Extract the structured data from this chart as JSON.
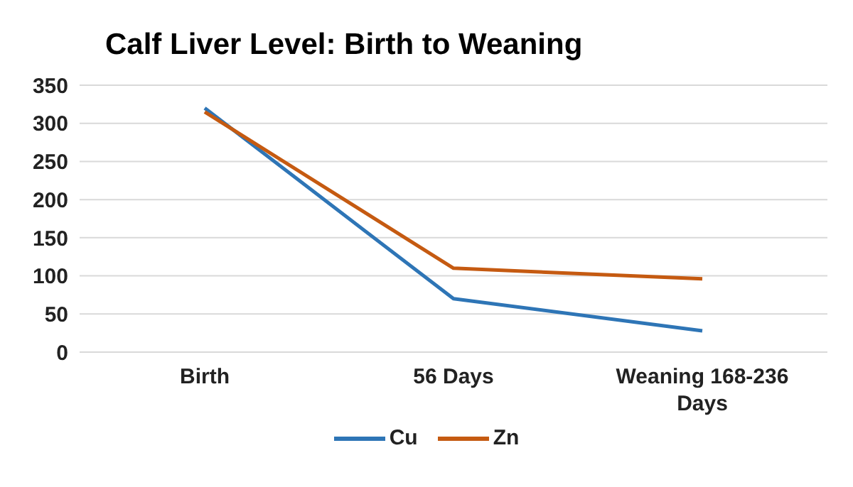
{
  "chart_data": {
    "type": "line",
    "title": "Calf Liver Level: Birth to Weaning",
    "categories": [
      "Birth",
      "56 Days",
      "Weaning 168-236 Days"
    ],
    "series": [
      {
        "name": "Cu",
        "color": "#2e75b6",
        "values": [
          320,
          70,
          28
        ]
      },
      {
        "name": "Zn",
        "color": "#c55a11",
        "values": [
          315,
          110,
          96
        ]
      }
    ],
    "ylim": [
      0,
      350
    ],
    "yticks": [
      0,
      50,
      100,
      150,
      200,
      250,
      300,
      350
    ],
    "grid": "y",
    "legend": "bottom",
    "marker": "none",
    "line_style": "solid"
  }
}
